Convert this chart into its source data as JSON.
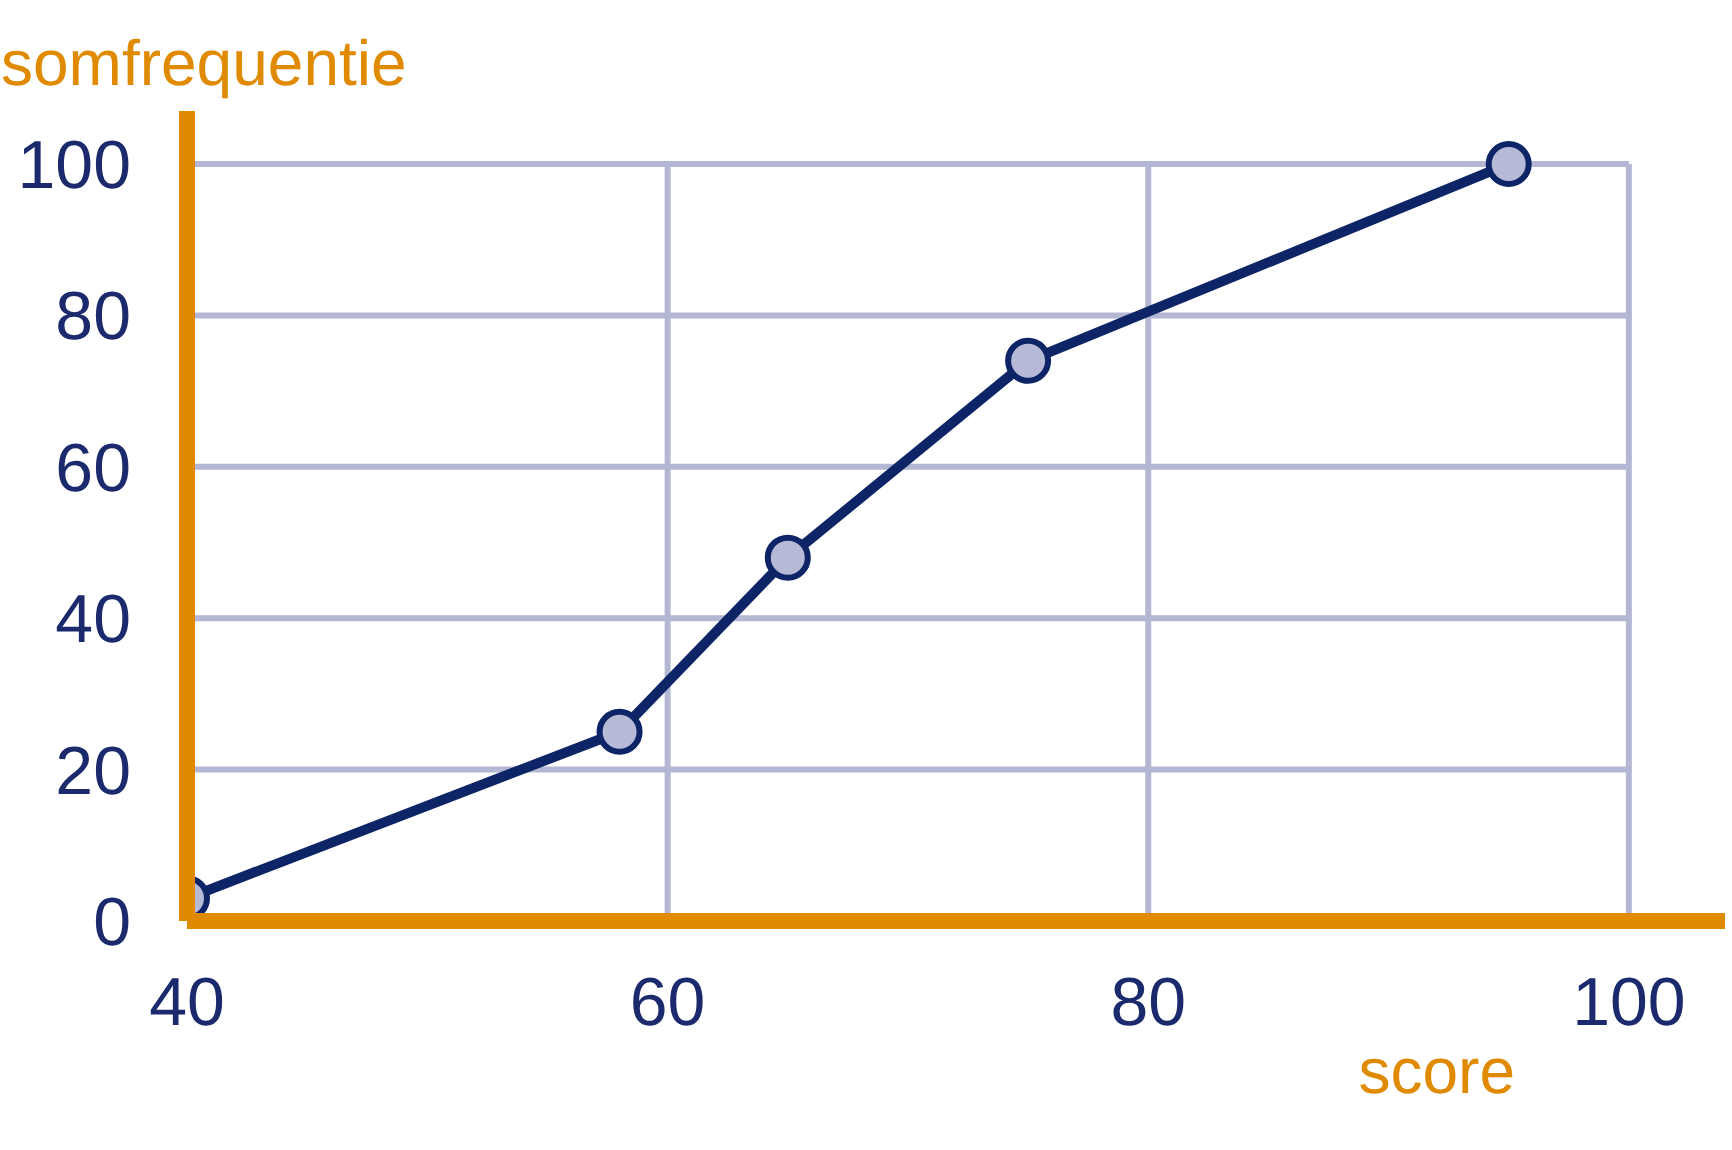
{
  "chart_data": {
    "type": "line",
    "xlabel": "score",
    "ylabel": "somfrequentie",
    "x": [
      40,
      58,
      65,
      75,
      95
    ],
    "series": [
      {
        "color": "#0d2466",
        "values": [
          3,
          25,
          48,
          74,
          100
        ]
      }
    ],
    "xlim": [
      40,
      104
    ],
    "ylim": [
      0,
      107
    ],
    "xticks": [
      40,
      60,
      80,
      100
    ],
    "yticks": [
      0,
      20,
      40,
      60,
      80,
      100
    ],
    "grid": true,
    "marker": "circle",
    "line_style": "solid"
  }
}
